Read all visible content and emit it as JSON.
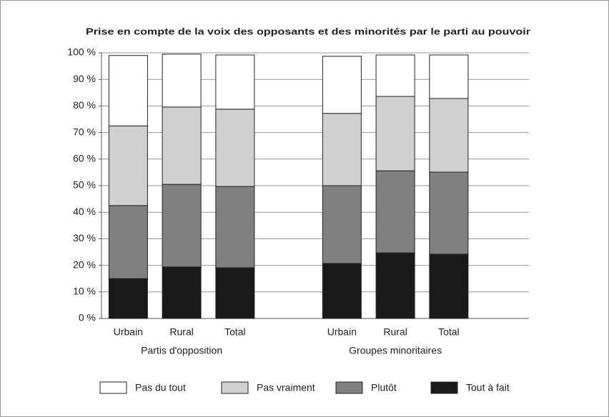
{
  "chart_data": {
    "type": "stacked_bar",
    "title": "Prise en compte de la voix des opposants et des minorités par le parti au pouvoir",
    "categories": [
      "Urbain",
      "Rural",
      "Total",
      null,
      "Urbain",
      "Rural",
      "Total",
      null
    ],
    "group_labels": [
      "Partis d'opposition",
      "Groupes minoritaires"
    ],
    "series": [
      {
        "name": "Pas du tout",
        "color": "#ffffff",
        "values": [
          26.5,
          19.9,
          20.4,
          null,
          21.5,
          15.6,
          16.4,
          null
        ]
      },
      {
        "name": "Pas vraiment",
        "color": "#d0d0d0",
        "values": [
          30,
          29.1,
          29.1,
          null,
          27.2,
          28,
          27.7,
          null
        ]
      },
      {
        "name": "Plutôt",
        "color": "#808080",
        "values": [
          27.5,
          31.1,
          30.6,
          null,
          29.3,
          30.9,
          30.9,
          null
        ]
      },
      {
        "name": "Tout à fait",
        "color": "#1a1a1a",
        "values": [
          15,
          19.4,
          19.1,
          null,
          20.7,
          24.7,
          24.2,
          null
        ]
      }
    ],
    "ylim": [
      0,
      100
    ],
    "yticks": [
      {
        "value": 0,
        "label": "0 %"
      },
      {
        "value": 10,
        "label": "10 %"
      },
      {
        "value": 20,
        "label": "20 %"
      },
      {
        "value": 30,
        "label": "30 %"
      },
      {
        "value": 40,
        "label": "40 %"
      },
      {
        "value": 50,
        "label": "50 %"
      },
      {
        "value": 60,
        "label": "60 %"
      },
      {
        "value": 70,
        "label": "70 %"
      },
      {
        "value": 80,
        "label": "80 %"
      },
      {
        "value": 90,
        "label": "90 %"
      },
      {
        "value": 100,
        "label": "100 %"
      }
    ],
    "grid": true,
    "legend": "bottom"
  }
}
